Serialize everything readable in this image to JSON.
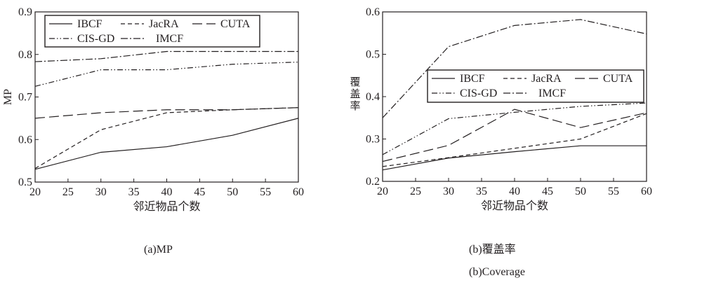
{
  "chart_data": [
    {
      "type": "line",
      "title": "",
      "xlabel": "邻近物品个数",
      "ylabel": "MP",
      "xlim": [
        20,
        60
      ],
      "ylim": [
        0.5,
        0.9
      ],
      "xticks": [
        "20",
        "25",
        "30",
        "35",
        "40",
        "45",
        "50",
        "55",
        "60"
      ],
      "yticks": [
        "0.5",
        "0.6",
        "0.7",
        "0.8",
        "0.9"
      ],
      "legend_position": "top-left",
      "grid": false,
      "x": [
        20,
        30,
        40,
        50,
        60
      ],
      "series": [
        {
          "name": "IBCF",
          "values": [
            0.53,
            0.57,
            0.583,
            0.61,
            0.65
          ]
        },
        {
          "name": "JacRA",
          "values": [
            0.532,
            0.623,
            0.663,
            0.67,
            0.675
          ]
        },
        {
          "name": "CUTA",
          "values": [
            0.65,
            0.663,
            0.67,
            0.67,
            0.675
          ]
        },
        {
          "name": "CIS-GD",
          "values": [
            0.725,
            0.764,
            0.764,
            0.777,
            0.782
          ]
        },
        {
          "name": "IMCF",
          "values": [
            0.783,
            0.79,
            0.807,
            0.807,
            0.807
          ]
        }
      ],
      "caption": "(a)MP"
    },
    {
      "type": "line",
      "title": "",
      "xlabel": "邻近物品个数",
      "ylabel": "覆盖率",
      "xlim": [
        20,
        60
      ],
      "ylim": [
        0.2,
        0.6
      ],
      "xticks": [
        "20",
        "25",
        "30",
        "35",
        "40",
        "45",
        "50",
        "55",
        "60"
      ],
      "yticks": [
        "0.2",
        "0.3",
        "0.4",
        "0.5",
        "0.6"
      ],
      "legend_position": "center-right",
      "grid": false,
      "x": [
        20,
        30,
        40,
        50,
        60
      ],
      "series": [
        {
          "name": "IBCF",
          "values": [
            0.227,
            0.255,
            0.27,
            0.284,
            0.284
          ]
        },
        {
          "name": "JacRA",
          "values": [
            0.235,
            0.256,
            0.278,
            0.3,
            0.36
          ]
        },
        {
          "name": "CUTA",
          "values": [
            0.247,
            0.285,
            0.37,
            0.327,
            0.362
          ]
        },
        {
          "name": "CIS-GD",
          "values": [
            0.263,
            0.348,
            0.363,
            0.377,
            0.385
          ]
        },
        {
          "name": "IMCF",
          "values": [
            0.35,
            0.518,
            0.568,
            0.582,
            0.548
          ]
        }
      ],
      "caption": "(b)覆盖率",
      "caption_en": "(b)Coverage"
    }
  ],
  "style": {
    "line_color": "#231f20"
  }
}
